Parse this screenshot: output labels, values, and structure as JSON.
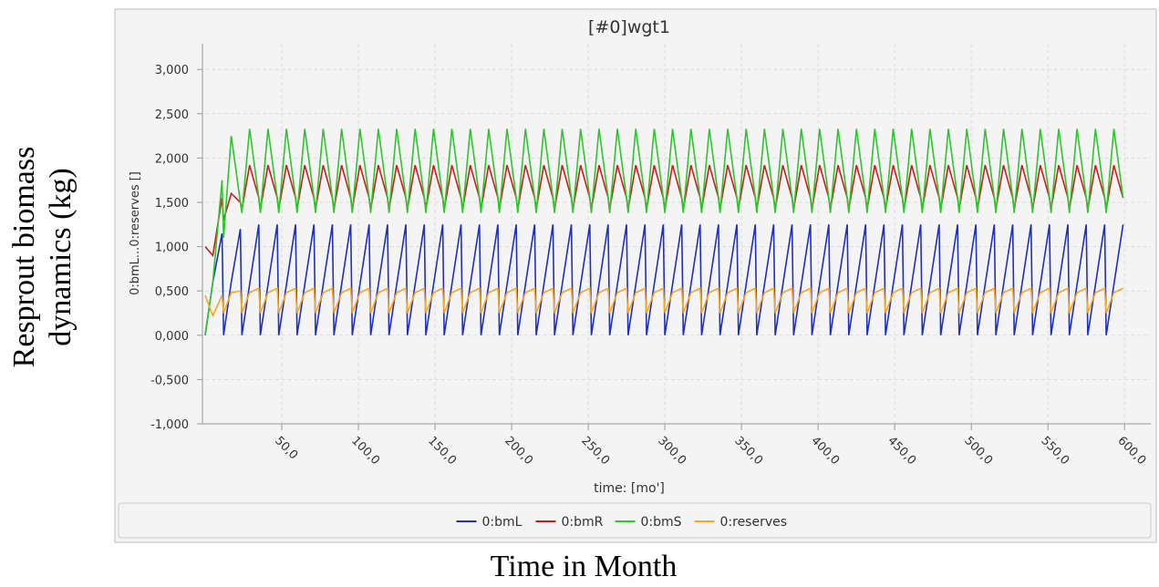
{
  "chart_data": {
    "type": "line",
    "title": "[#0]wgt1",
    "outer_y_label": "Resprout biomass dynamics (kg)",
    "outer_x_label": "Time in Month",
    "x_label": "time:  [mo']",
    "y_label": "0:bmL...0:reserves []",
    "x": [
      0,
      5,
      11,
      12,
      17,
      23,
      24,
      29,
      35,
      36,
      41,
      47,
      48,
      53,
      59,
      60,
      65,
      71,
      72,
      77,
      83,
      84,
      89,
      95,
      96,
      101,
      107,
      108,
      113,
      119,
      120,
      125,
      131,
      132,
      137,
      143,
      144,
      149,
      155,
      156,
      161,
      167,
      168,
      173,
      179,
      180,
      185,
      191,
      192,
      197,
      203,
      204,
      209,
      215,
      216,
      221,
      227,
      228,
      233,
      239,
      240,
      245,
      251,
      252,
      257,
      263,
      264,
      269,
      275,
      276,
      281,
      287,
      288,
      293,
      299,
      300,
      305,
      311,
      312,
      317,
      323,
      324,
      329,
      335,
      336,
      341,
      347,
      348,
      353,
      359,
      360,
      365,
      371,
      372,
      377,
      383,
      384,
      389,
      395,
      396,
      401,
      407,
      408,
      413,
      419,
      420,
      425,
      431,
      432,
      437,
      443,
      444,
      449,
      455,
      456,
      461,
      467,
      468,
      473,
      479,
      480,
      485,
      491,
      492,
      497,
      503,
      504,
      509,
      515,
      516,
      521,
      527,
      528,
      533,
      539,
      540,
      545,
      551,
      552,
      557,
      563,
      564,
      569,
      575,
      576,
      581,
      587,
      588,
      593,
      599
    ],
    "series": [
      {
        "name": "0:bmL",
        "color": "#1f2fc0",
        "values": [
          0,
          0.6,
          1.15,
          0,
          0.6,
          1.2,
          0,
          0.57,
          1.25,
          0,
          0.57,
          1.25,
          0,
          0.57,
          1.25,
          0,
          0.57,
          1.25,
          0,
          0.57,
          1.25,
          0,
          0.57,
          1.25,
          0,
          0.57,
          1.25,
          0,
          0.57,
          1.25,
          0,
          0.57,
          1.25,
          0,
          0.57,
          1.25,
          0,
          0.57,
          1.25,
          0,
          0.57,
          1.25,
          0,
          0.57,
          1.25,
          0,
          0.57,
          1.25,
          0,
          0.57,
          1.25,
          0,
          0.57,
          1.25,
          0,
          0.57,
          1.25,
          0,
          0.57,
          1.25,
          0,
          0.57,
          1.25,
          0,
          0.57,
          1.25,
          0,
          0.57,
          1.25,
          0,
          0.57,
          1.25,
          0,
          0.57,
          1.25,
          0,
          0.57,
          1.25,
          0,
          0.57,
          1.25,
          0,
          0.57,
          1.25,
          0,
          0.57,
          1.25,
          0,
          0.57,
          1.25,
          0,
          0.57,
          1.25,
          0,
          0.57,
          1.25,
          0,
          0.57,
          1.25,
          0,
          0.57,
          1.25,
          0,
          0.57,
          1.25,
          0,
          0.57,
          1.25,
          0,
          0.57,
          1.25,
          0,
          0.57,
          1.25,
          0,
          0.57,
          1.25,
          0,
          0.57,
          1.25,
          0,
          0.57,
          1.25,
          0,
          0.57,
          1.25,
          0,
          0.57,
          1.25,
          0,
          0.57,
          1.25,
          0,
          0.57,
          1.25,
          0,
          0.57,
          1.25,
          0,
          0.57,
          1.25,
          0,
          0.57,
          1.25,
          0,
          0.57,
          1.25,
          0,
          0.57,
          1.25
        ]
      },
      {
        "name": "0:bmR",
        "color": "#c81e1e",
        "values": [
          1.0,
          0.9,
          1.55,
          1.3,
          1.6,
          1.5,
          1.42,
          1.92,
          1.55,
          1.42,
          1.92,
          1.55,
          1.42,
          1.92,
          1.55,
          1.42,
          1.92,
          1.55,
          1.42,
          1.92,
          1.55,
          1.42,
          1.92,
          1.55,
          1.42,
          1.92,
          1.55,
          1.42,
          1.92,
          1.55,
          1.42,
          1.92,
          1.55,
          1.42,
          1.92,
          1.55,
          1.42,
          1.92,
          1.55,
          1.42,
          1.92,
          1.55,
          1.42,
          1.92,
          1.55,
          1.42,
          1.92,
          1.55,
          1.42,
          1.92,
          1.55,
          1.42,
          1.92,
          1.55,
          1.42,
          1.92,
          1.55,
          1.42,
          1.92,
          1.55,
          1.42,
          1.92,
          1.55,
          1.42,
          1.92,
          1.55,
          1.42,
          1.92,
          1.55,
          1.42,
          1.92,
          1.55,
          1.42,
          1.92,
          1.55,
          1.42,
          1.92,
          1.55,
          1.42,
          1.92,
          1.55,
          1.42,
          1.92,
          1.55,
          1.42,
          1.92,
          1.55,
          1.42,
          1.92,
          1.55,
          1.42,
          1.92,
          1.55,
          1.42,
          1.92,
          1.55,
          1.42,
          1.92,
          1.55,
          1.42,
          1.92,
          1.55,
          1.42,
          1.92,
          1.55,
          1.42,
          1.92,
          1.55,
          1.42,
          1.92,
          1.55,
          1.42,
          1.92,
          1.55,
          1.42,
          1.92,
          1.55,
          1.42,
          1.92,
          1.55,
          1.42,
          1.92,
          1.55,
          1.42,
          1.92,
          1.55,
          1.42,
          1.92,
          1.55,
          1.42,
          1.92,
          1.55,
          1.42,
          1.92,
          1.55,
          1.42,
          1.92,
          1.55,
          1.42,
          1.92,
          1.55,
          1.42,
          1.92,
          1.55,
          1.42,
          1.92,
          1.55,
          1.42,
          1.92,
          1.55
        ]
      },
      {
        "name": "0:bmS",
        "color": "#2ec52e",
        "values": [
          0,
          0.6,
          1.75,
          1.1,
          2.25,
          1.5,
          1.38,
          2.33,
          1.55,
          1.38,
          2.33,
          1.55,
          1.38,
          2.33,
          1.55,
          1.38,
          2.33,
          1.55,
          1.38,
          2.33,
          1.55,
          1.38,
          2.33,
          1.55,
          1.38,
          2.33,
          1.55,
          1.38,
          2.33,
          1.55,
          1.38,
          2.33,
          1.55,
          1.38,
          2.33,
          1.55,
          1.38,
          2.33,
          1.55,
          1.38,
          2.33,
          1.55,
          1.38,
          2.33,
          1.55,
          1.38,
          2.33,
          1.55,
          1.38,
          2.33,
          1.55,
          1.38,
          2.33,
          1.55,
          1.38,
          2.33,
          1.55,
          1.38,
          2.33,
          1.55,
          1.38,
          2.33,
          1.55,
          1.38,
          2.33,
          1.55,
          1.38,
          2.33,
          1.55,
          1.38,
          2.33,
          1.55,
          1.38,
          2.33,
          1.55,
          1.38,
          2.33,
          1.55,
          1.38,
          2.33,
          1.55,
          1.38,
          2.33,
          1.55,
          1.38,
          2.33,
          1.55,
          1.38,
          2.33,
          1.55,
          1.38,
          2.33,
          1.55,
          1.38,
          2.33,
          1.55,
          1.38,
          2.33,
          1.55,
          1.38,
          2.33,
          1.55,
          1.38,
          2.33,
          1.55,
          1.38,
          2.33,
          1.55,
          1.38,
          2.33,
          1.55,
          1.38,
          2.33,
          1.55,
          1.38,
          2.33,
          1.55,
          1.38,
          2.33,
          1.55,
          1.38,
          2.33,
          1.55,
          1.38,
          2.33,
          1.55,
          1.38,
          2.33,
          1.55,
          1.38,
          2.33,
          1.55,
          1.38,
          2.33,
          1.55,
          1.38,
          2.33,
          1.55,
          1.38,
          2.33,
          1.55,
          1.38,
          2.33,
          1.55,
          1.38,
          2.33,
          1.55,
          1.38,
          2.33,
          1.55
        ]
      },
      {
        "name": "0:reserves",
        "color": "#f5a623",
        "values": [
          0.45,
          0.22,
          0.45,
          0.25,
          0.48,
          0.5,
          0.25,
          0.48,
          0.53,
          0.25,
          0.48,
          0.53,
          0.25,
          0.48,
          0.53,
          0.25,
          0.48,
          0.53,
          0.25,
          0.48,
          0.53,
          0.25,
          0.48,
          0.53,
          0.25,
          0.48,
          0.53,
          0.25,
          0.48,
          0.53,
          0.25,
          0.48,
          0.53,
          0.25,
          0.48,
          0.53,
          0.25,
          0.48,
          0.53,
          0.25,
          0.48,
          0.53,
          0.25,
          0.48,
          0.53,
          0.25,
          0.48,
          0.53,
          0.25,
          0.48,
          0.53,
          0.25,
          0.48,
          0.53,
          0.25,
          0.48,
          0.53,
          0.25,
          0.48,
          0.53,
          0.25,
          0.48,
          0.53,
          0.25,
          0.48,
          0.53,
          0.25,
          0.48,
          0.53,
          0.25,
          0.48,
          0.53,
          0.25,
          0.48,
          0.53,
          0.25,
          0.48,
          0.53,
          0.25,
          0.48,
          0.53,
          0.25,
          0.48,
          0.53,
          0.25,
          0.48,
          0.53,
          0.25,
          0.48,
          0.53,
          0.25,
          0.48,
          0.53,
          0.25,
          0.48,
          0.53,
          0.25,
          0.48,
          0.53,
          0.25,
          0.48,
          0.53,
          0.25,
          0.48,
          0.53,
          0.25,
          0.48,
          0.53,
          0.25,
          0.48,
          0.53,
          0.25,
          0.48,
          0.53,
          0.25,
          0.48,
          0.53,
          0.25,
          0.48,
          0.53,
          0.25,
          0.48,
          0.53,
          0.25,
          0.48,
          0.53,
          0.25,
          0.48,
          0.53,
          0.25,
          0.48,
          0.53,
          0.25,
          0.48,
          0.53,
          0.25,
          0.48,
          0.53,
          0.25,
          0.48,
          0.53,
          0.25,
          0.48,
          0.53,
          0.25,
          0.48,
          0.53,
          0.25,
          0.48,
          0.53
        ]
      }
    ],
    "xlim": [
      0,
      607
    ],
    "xticks": [
      {
        "value": 50,
        "label": "50,0"
      },
      {
        "value": 100,
        "label": "100,0"
      },
      {
        "value": 150,
        "label": "150,0"
      },
      {
        "value": 200,
        "label": "200,0"
      },
      {
        "value": 250,
        "label": "250,0"
      },
      {
        "value": 300,
        "label": "300,0"
      },
      {
        "value": 350,
        "label": "350,0"
      },
      {
        "value": 400,
        "label": "400,0"
      },
      {
        "value": 450,
        "label": "450,0"
      },
      {
        "value": 500,
        "label": "500,0"
      },
      {
        "value": 550,
        "label": "550,0"
      },
      {
        "value": 600,
        "label": "600,0"
      }
    ],
    "ylim": [
      -1.0,
      3.29
    ],
    "yticks": [
      {
        "value": 3,
        "label": "3,000"
      },
      {
        "value": 2.5,
        "label": "2,500"
      },
      {
        "value": 2,
        "label": "2,000"
      },
      {
        "value": 1.5,
        "label": "1,500"
      },
      {
        "value": 1,
        "label": "1,000"
      },
      {
        "value": 0.5,
        "label": "0,500"
      },
      {
        "value": 0,
        "label": "0,000"
      },
      {
        "value": -0.5,
        "label": "-0,500"
      },
      {
        "value": -1,
        "label": "-1,000"
      }
    ],
    "grid": true
  }
}
